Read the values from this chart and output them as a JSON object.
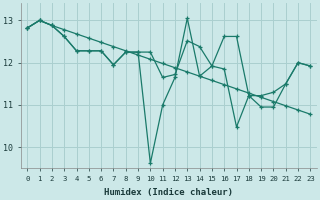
{
  "xlabel": "Humidex (Indice chaleur)",
  "bg_color": "#cce8e8",
  "grid_color": "#aacfcf",
  "line_color": "#1a7a6a",
  "xlim": [
    -0.5,
    23.5
  ],
  "ylim": [
    9.5,
    13.4
  ],
  "yticks": [
    10,
    11,
    12,
    13
  ],
  "xticks": [
    0,
    1,
    2,
    3,
    4,
    5,
    6,
    7,
    8,
    9,
    10,
    11,
    12,
    13,
    14,
    15,
    16,
    17,
    18,
    19,
    20,
    21,
    22,
    23
  ],
  "series1_x": [
    0,
    1,
    2,
    3,
    4,
    5,
    6,
    7,
    8,
    9,
    10,
    11,
    12,
    13,
    14,
    15,
    16,
    17,
    18,
    19,
    20,
    21,
    22,
    23
  ],
  "series1_y": [
    12.82,
    13.0,
    12.88,
    12.78,
    12.68,
    12.58,
    12.48,
    12.38,
    12.28,
    12.18,
    12.08,
    11.98,
    11.88,
    11.78,
    11.68,
    11.58,
    11.48,
    11.38,
    11.28,
    11.18,
    11.08,
    10.98,
    10.88,
    10.78
  ],
  "series2_x": [
    0,
    1,
    2,
    3,
    4,
    5,
    6,
    7,
    8,
    9,
    10,
    11,
    12,
    13,
    14,
    15,
    16,
    17,
    18,
    19,
    20,
    21,
    22,
    23
  ],
  "series2_y": [
    12.82,
    13.0,
    12.88,
    12.62,
    12.28,
    12.28,
    12.28,
    11.95,
    12.25,
    12.25,
    12.25,
    11.65,
    11.72,
    12.52,
    12.38,
    11.92,
    12.62,
    12.62,
    11.22,
    11.22,
    11.3,
    11.5,
    12.0,
    11.92
  ],
  "series3_x": [
    0,
    1,
    2,
    3,
    4,
    5,
    6,
    7,
    8,
    9,
    10,
    11,
    12,
    13,
    14,
    15,
    16,
    17,
    18,
    19,
    20,
    21,
    22,
    23
  ],
  "series3_y": [
    12.82,
    13.0,
    12.88,
    12.62,
    12.28,
    12.28,
    12.28,
    11.95,
    12.25,
    12.25,
    9.62,
    11.0,
    11.65,
    13.05,
    11.68,
    11.92,
    11.85,
    10.48,
    11.22,
    10.95,
    10.95,
    11.5,
    12.0,
    11.92
  ],
  "marker_size": 3.5,
  "linewidth": 0.9
}
